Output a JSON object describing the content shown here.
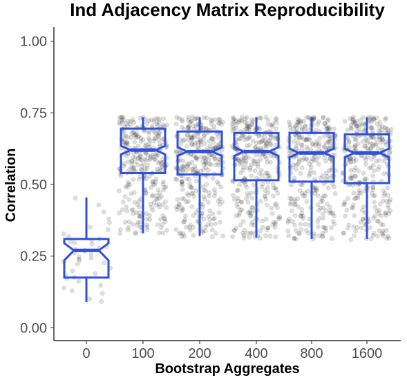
{
  "chart_data": {
    "type": "boxplot",
    "title": "Ind Adjacency Matrix Reproducibility",
    "xlabel": "Bootstrap Aggregates",
    "ylabel": "Correlation",
    "ylim": [
      -0.045,
      1.05
    ],
    "yticks": [
      0.0,
      0.25,
      0.5,
      0.75,
      1.0
    ],
    "ytick_labels": [
      "0.00",
      "0.25",
      "0.50",
      "0.75",
      "1.00"
    ],
    "categories": [
      "0",
      "100",
      "200",
      "400",
      "800",
      "1600"
    ],
    "grid": false,
    "notched": true,
    "box_color": "#2e50dd",
    "point_color": "#000000",
    "point_alpha": 0.13,
    "boxes": [
      {
        "category": "0",
        "whisker_low": 0.09,
        "q1": 0.175,
        "median": 0.27,
        "q3": 0.31,
        "whisker_high": 0.455,
        "notch_low": 0.235,
        "notch_high": 0.295
      },
      {
        "category": "100",
        "whisker_low": 0.33,
        "q1": 0.54,
        "median": 0.62,
        "q3": 0.695,
        "whisker_high": 0.735,
        "notch_low": 0.605,
        "notch_high": 0.635
      },
      {
        "category": "200",
        "whisker_low": 0.32,
        "q1": 0.535,
        "median": 0.615,
        "q3": 0.685,
        "whisker_high": 0.735,
        "notch_low": 0.6,
        "notch_high": 0.63
      },
      {
        "category": "400",
        "whisker_low": 0.315,
        "q1": 0.515,
        "median": 0.615,
        "q3": 0.68,
        "whisker_high": 0.735,
        "notch_low": 0.6,
        "notch_high": 0.63
      },
      {
        "category": "800",
        "whisker_low": 0.31,
        "q1": 0.51,
        "median": 0.61,
        "q3": 0.68,
        "whisker_high": 0.735,
        "notch_low": 0.595,
        "notch_high": 0.625
      },
      {
        "category": "1600",
        "whisker_low": 0.31,
        "q1": 0.505,
        "median": 0.61,
        "q3": 0.675,
        "whisker_high": 0.735,
        "notch_low": 0.595,
        "notch_high": 0.625
      }
    ],
    "points": [
      {
        "category": "0",
        "y": [
          0.455,
          0.43,
          0.405,
          0.38,
          0.365,
          0.35,
          0.34,
          0.33,
          0.32,
          0.31,
          0.305,
          0.3,
          0.295,
          0.29,
          0.285,
          0.28,
          0.275,
          0.27,
          0.265,
          0.26,
          0.255,
          0.25,
          0.245,
          0.24,
          0.235,
          0.23,
          0.225,
          0.22,
          0.21,
          0.2,
          0.19,
          0.18,
          0.175,
          0.17,
          0.16,
          0.15,
          0.14,
          0.13,
          0.12,
          0.1,
          0.09
        ]
      },
      {
        "category": "100",
        "y": [
          0.735,
          0.73,
          0.725,
          0.72,
          0.715,
          0.71,
          0.705,
          0.7,
          0.695,
          0.69,
          0.685,
          0.68,
          0.675,
          0.67,
          0.665,
          0.66,
          0.655,
          0.65,
          0.645,
          0.64,
          0.635,
          0.63,
          0.625,
          0.62,
          0.615,
          0.61,
          0.605,
          0.6,
          0.595,
          0.59,
          0.585,
          0.58,
          0.575,
          0.57,
          0.565,
          0.56,
          0.555,
          0.55,
          0.545,
          0.54,
          0.53,
          0.52,
          0.51,
          0.5,
          0.49,
          0.48,
          0.47,
          0.46,
          0.45,
          0.44,
          0.43,
          0.42,
          0.41,
          0.4,
          0.39,
          0.38,
          0.37,
          0.36,
          0.35,
          0.34,
          0.33
        ]
      },
      {
        "category": "200",
        "y": [
          0.735,
          0.73,
          0.725,
          0.72,
          0.715,
          0.71,
          0.705,
          0.7,
          0.695,
          0.69,
          0.685,
          0.68,
          0.675,
          0.67,
          0.665,
          0.66,
          0.655,
          0.65,
          0.645,
          0.64,
          0.635,
          0.63,
          0.625,
          0.62,
          0.615,
          0.61,
          0.605,
          0.6,
          0.595,
          0.59,
          0.585,
          0.58,
          0.575,
          0.57,
          0.565,
          0.56,
          0.555,
          0.55,
          0.545,
          0.54,
          0.535,
          0.53,
          0.52,
          0.51,
          0.5,
          0.49,
          0.48,
          0.47,
          0.46,
          0.45,
          0.44,
          0.43,
          0.42,
          0.41,
          0.4,
          0.39,
          0.38,
          0.37,
          0.36,
          0.35,
          0.34,
          0.33,
          0.32
        ]
      },
      {
        "category": "400",
        "y": [
          0.735,
          0.73,
          0.725,
          0.72,
          0.715,
          0.71,
          0.705,
          0.7,
          0.695,
          0.69,
          0.685,
          0.68,
          0.675,
          0.67,
          0.665,
          0.66,
          0.655,
          0.65,
          0.645,
          0.64,
          0.635,
          0.63,
          0.625,
          0.62,
          0.615,
          0.61,
          0.605,
          0.6,
          0.595,
          0.59,
          0.585,
          0.58,
          0.575,
          0.57,
          0.56,
          0.55,
          0.54,
          0.53,
          0.52,
          0.515,
          0.51,
          0.5,
          0.49,
          0.48,
          0.47,
          0.46,
          0.45,
          0.44,
          0.43,
          0.42,
          0.41,
          0.4,
          0.39,
          0.38,
          0.37,
          0.36,
          0.35,
          0.34,
          0.33,
          0.32,
          0.315
        ]
      },
      {
        "category": "800",
        "y": [
          0.735,
          0.73,
          0.725,
          0.72,
          0.715,
          0.71,
          0.705,
          0.7,
          0.695,
          0.69,
          0.685,
          0.68,
          0.675,
          0.67,
          0.665,
          0.66,
          0.655,
          0.65,
          0.645,
          0.64,
          0.635,
          0.63,
          0.625,
          0.62,
          0.615,
          0.61,
          0.605,
          0.6,
          0.595,
          0.59,
          0.585,
          0.58,
          0.57,
          0.56,
          0.55,
          0.54,
          0.53,
          0.52,
          0.51,
          0.5,
          0.49,
          0.48,
          0.47,
          0.46,
          0.45,
          0.44,
          0.43,
          0.42,
          0.41,
          0.4,
          0.39,
          0.38,
          0.37,
          0.36,
          0.35,
          0.34,
          0.33,
          0.32,
          0.31
        ]
      },
      {
        "category": "1600",
        "y": [
          0.735,
          0.73,
          0.725,
          0.72,
          0.715,
          0.71,
          0.705,
          0.7,
          0.695,
          0.69,
          0.685,
          0.68,
          0.675,
          0.67,
          0.665,
          0.66,
          0.655,
          0.65,
          0.645,
          0.64,
          0.635,
          0.63,
          0.625,
          0.62,
          0.615,
          0.61,
          0.605,
          0.6,
          0.595,
          0.59,
          0.585,
          0.58,
          0.57,
          0.56,
          0.55,
          0.54,
          0.53,
          0.52,
          0.51,
          0.505,
          0.5,
          0.49,
          0.48,
          0.47,
          0.46,
          0.45,
          0.44,
          0.43,
          0.42,
          0.41,
          0.4,
          0.39,
          0.38,
          0.37,
          0.36,
          0.35,
          0.34,
          0.33,
          0.32,
          0.31
        ]
      }
    ]
  }
}
